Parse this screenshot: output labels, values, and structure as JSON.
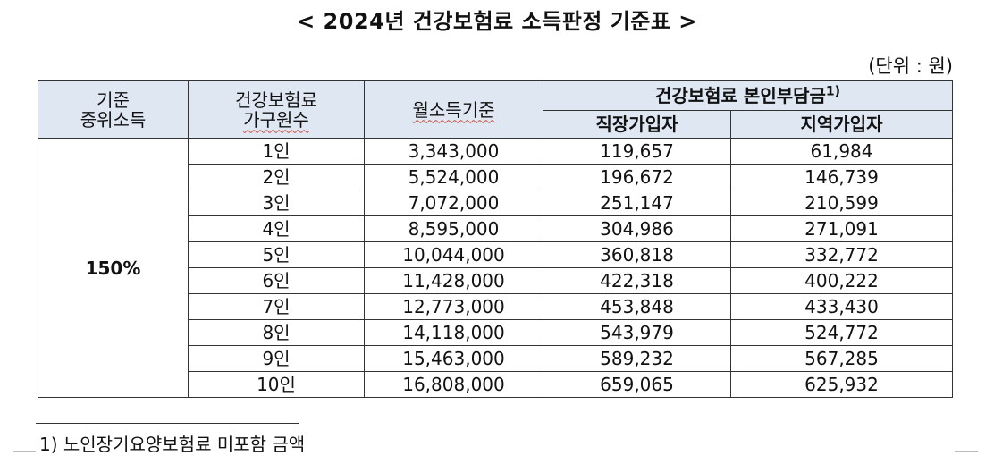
{
  "title": "< 2024년 건강보험료 소득판정 기준표 >",
  "unit": "(단위 : 원)",
  "table": {
    "headers": {
      "median_income_line1": "기준",
      "median_income_line2": "중위소득",
      "household_line1": "건강보험료",
      "household_line2": "가구원수",
      "monthly_income": "월소득기준",
      "premium_group": "건강보험료 본인부담금",
      "premium_group_note": "1)",
      "employee": "직장가입자",
      "regional": "지역가입자"
    },
    "median_income_value": "150%",
    "rows": [
      {
        "household": "1인",
        "income": "3,343,000",
        "employee": "119,657",
        "regional": "61,984"
      },
      {
        "household": "2인",
        "income": "5,524,000",
        "employee": "196,672",
        "regional": "146,739"
      },
      {
        "household": "3인",
        "income": "7,072,000",
        "employee": "251,147",
        "regional": "210,599"
      },
      {
        "household": "4인",
        "income": "8,595,000",
        "employee": "304,986",
        "regional": "271,091"
      },
      {
        "household": "5인",
        "income": "10,044,000",
        "employee": "360,818",
        "regional": "332,772"
      },
      {
        "household": "6인",
        "income": "11,428,000",
        "employee": "422,318",
        "regional": "400,222"
      },
      {
        "household": "7인",
        "income": "12,773,000",
        "employee": "453,848",
        "regional": "433,430"
      },
      {
        "household": "8인",
        "income": "14,118,000",
        "employee": "543,979",
        "regional": "524,772"
      },
      {
        "household": "9인",
        "income": "15,463,000",
        "employee": "589,232",
        "regional": "567,285"
      },
      {
        "household": "10인",
        "income": "16,808,000",
        "employee": "659,065",
        "regional": "625,932"
      }
    ]
  },
  "footnote": "1)  노인장기요양보험료 미포함 금액",
  "colors": {
    "header_bg": "#dfe7f3",
    "border": "#333333",
    "spellcheck_underline": "#d04a3a"
  }
}
